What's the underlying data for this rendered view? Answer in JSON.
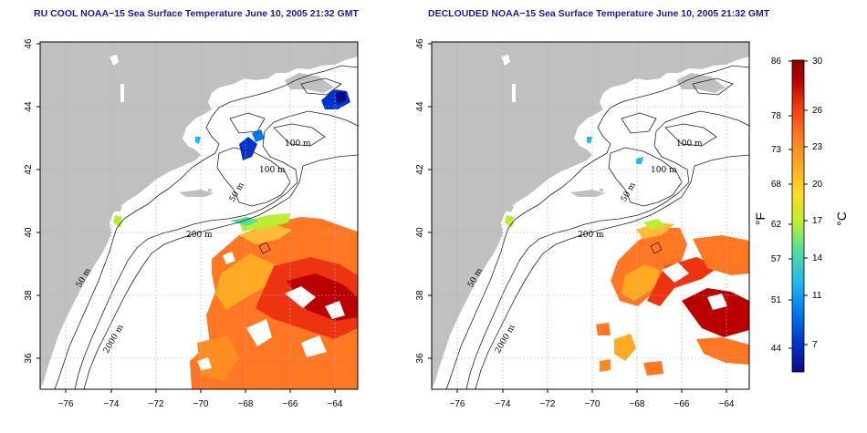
{
  "panels": [
    {
      "title": "RU COOL NOAA−15 Sea Surface Temperature June 10, 2005 21:32 GMT"
    },
    {
      "title": "DECLOUDED NOAA−15 Sea Surface Temperature June 10, 2005 21:32 GMT"
    }
  ],
  "axes": {
    "lon_ticks": [
      "−76",
      "−74",
      "−72",
      "−70",
      "−68",
      "−66",
      "−64"
    ],
    "lat_ticks": [
      "46",
      "44",
      "42",
      "40",
      "38",
      "36"
    ],
    "lon_range": [
      -77,
      -63
    ],
    "lat_range": [
      35,
      46
    ]
  },
  "contour_labels": [
    "100 m",
    "100 m",
    "50 m",
    "200 m",
    "50 m",
    "2000 m"
  ],
  "colorbar": {
    "fahrenheit_label": "°F",
    "celsius_label": "°C",
    "fahrenheit_ticks": [
      "86",
      "78",
      "73",
      "68",
      "62",
      "57",
      "51",
      "44"
    ],
    "celsius_ticks": [
      "30",
      "26",
      "23",
      "20",
      "17",
      "14",
      "11",
      "7"
    ],
    "celsius_range": [
      5,
      30
    ],
    "colors": [
      "#0a0a85",
      "#0033cc",
      "#0077ee",
      "#22bbee",
      "#55dd99",
      "#bbee33",
      "#ffdd22",
      "#ffaa22",
      "#ff7722",
      "#ee3311",
      "#bb0000",
      "#880000"
    ]
  },
  "colors": {
    "land": "#c0c0c0",
    "title": "#1a1a9c",
    "contour": "#222222",
    "grid": "#b0b0b0"
  }
}
